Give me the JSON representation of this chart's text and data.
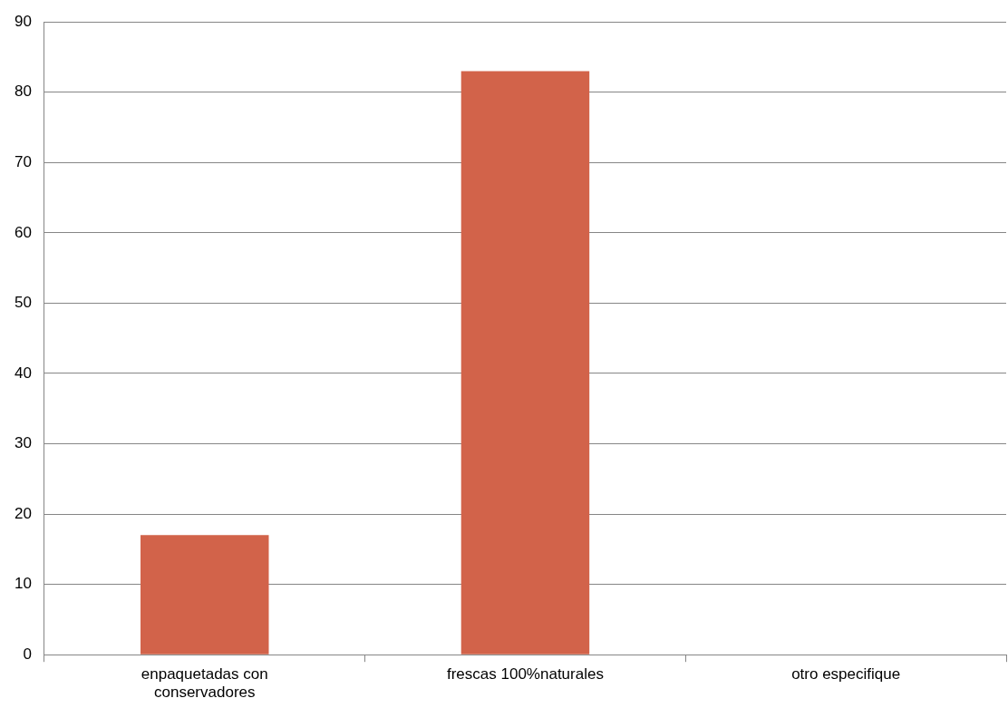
{
  "chart_data": {
    "type": "bar",
    "categories": [
      "enpaquetadas con conservadores",
      "frescas 100%naturales",
      "otro especifique"
    ],
    "values": [
      17,
      83,
      0
    ],
    "color": "#d2634a",
    "ylim": [
      0,
      90
    ],
    "yticks": [
      0,
      10,
      20,
      30,
      40,
      50,
      60,
      70,
      80,
      90
    ],
    "grid": "y"
  }
}
